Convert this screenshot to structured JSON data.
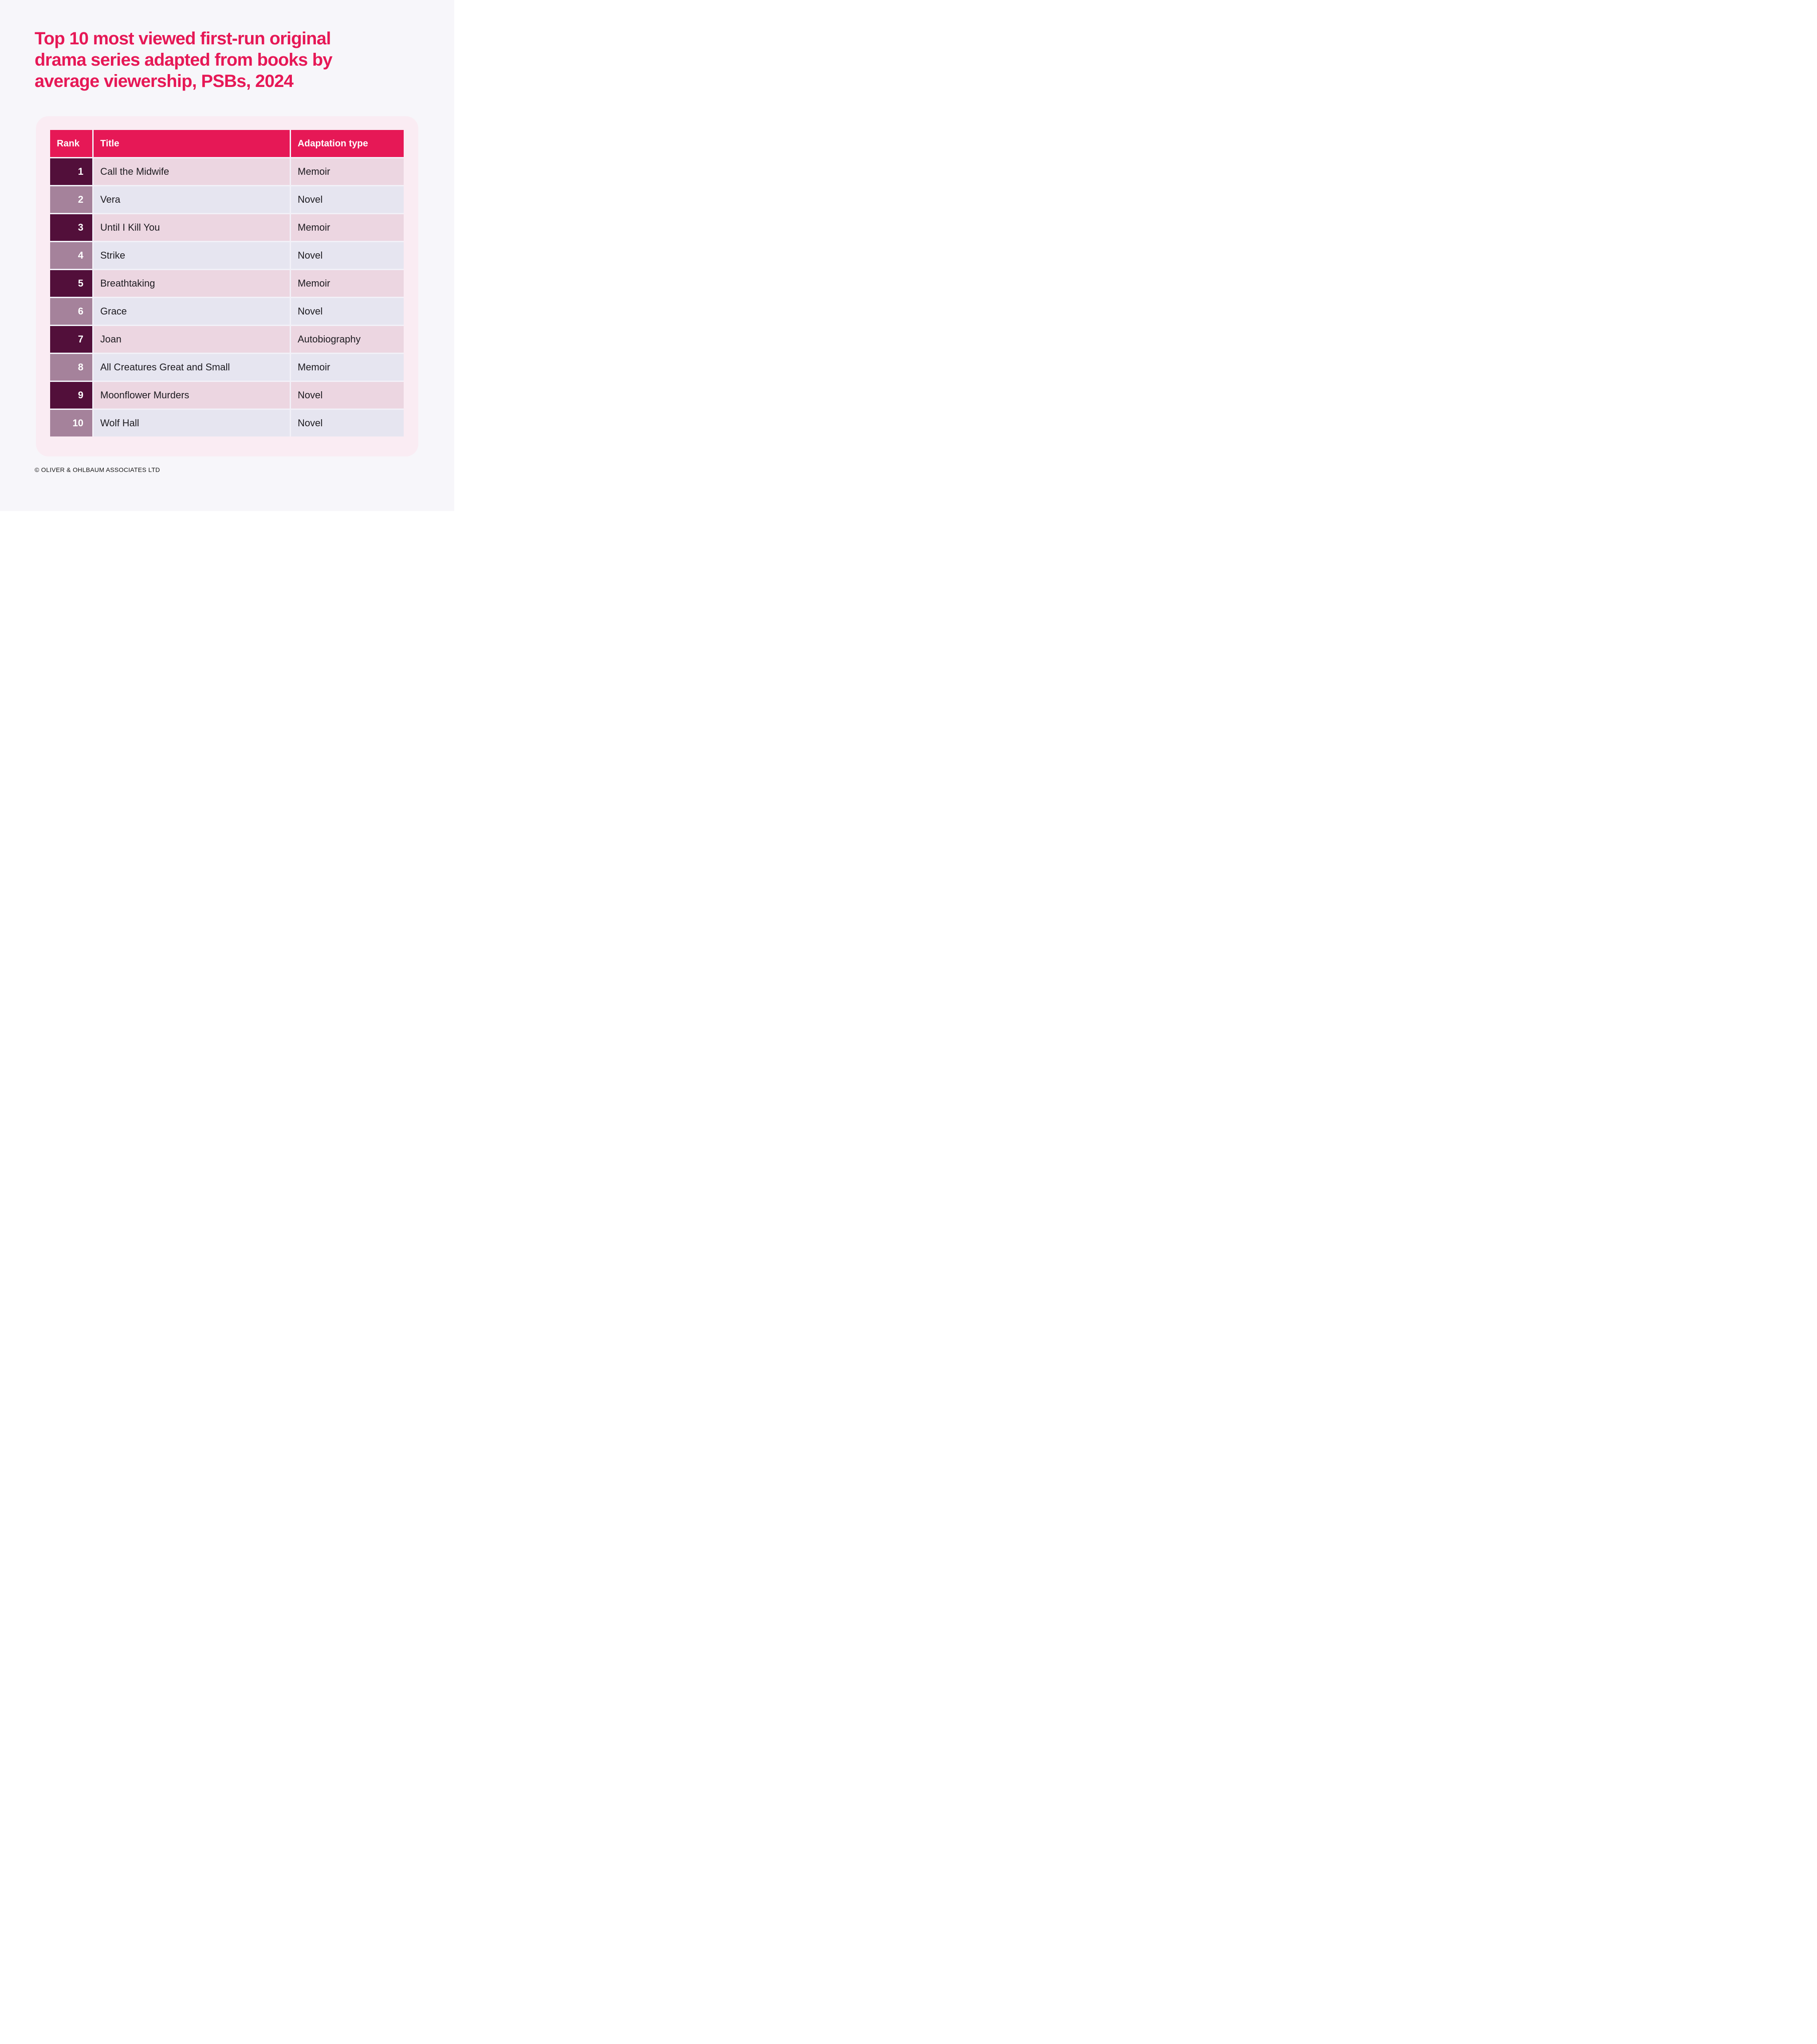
{
  "page": {
    "title": "Top 10 most viewed first-run original drama series adapted from books by average viewership, PSBs, 2024",
    "title_lines": [
      "Top 10 most viewed first-run original",
      "drama series adapted from books by",
      "average viewership, PSBs, 2024"
    ],
    "footer": "© OLIVER & OHLBAUM ASSOCIATES LTD"
  },
  "table": {
    "columns": [
      "Rank",
      "Title",
      "Adaptation type"
    ],
    "rows": [
      {
        "rank": "1",
        "title": "Call the Midwife",
        "type": "Memoir"
      },
      {
        "rank": "2",
        "title": "Vera",
        "type": "Novel"
      },
      {
        "rank": "3",
        "title": "Until I Kill You",
        "type": "Memoir"
      },
      {
        "rank": "4",
        "title": "Strike",
        "type": "Novel"
      },
      {
        "rank": "5",
        "title": "Breathtaking",
        "type": "Memoir"
      },
      {
        "rank": "6",
        "title": "Grace",
        "type": "Novel"
      },
      {
        "rank": "7",
        "title": "Joan",
        "type": "Autobiography"
      },
      {
        "rank": "8",
        "title": "All Creatures Great and Small",
        "type": "Memoir"
      },
      {
        "rank": "9",
        "title": "Moonflower Murders",
        "type": "Novel"
      },
      {
        "rank": "10",
        "title": "Wolf Hall",
        "type": "Novel"
      }
    ]
  },
  "chart_data": {
    "type": "table",
    "title": "Top 10 most viewed first-run original drama series adapted from books by average viewership, PSBs, 2024",
    "columns": [
      "Rank",
      "Title",
      "Adaptation type"
    ],
    "rows": [
      [
        1,
        "Call the Midwife",
        "Memoir"
      ],
      [
        2,
        "Vera",
        "Novel"
      ],
      [
        3,
        "Until I Kill You",
        "Memoir"
      ],
      [
        4,
        "Strike",
        "Novel"
      ],
      [
        5,
        "Breathtaking",
        "Memoir"
      ],
      [
        6,
        "Grace",
        "Novel"
      ],
      [
        7,
        "Joan",
        "Autobiography"
      ],
      [
        8,
        "All Creatures Great and Small",
        "Memoir"
      ],
      [
        9,
        "Moonflower Murders",
        "Novel"
      ],
      [
        10,
        "Wolf Hall",
        "Novel"
      ]
    ]
  },
  "colors": {
    "accent_pink": "#E61856",
    "dark_plum": "#520F3A",
    "mauve": "#A5829B",
    "row_pink": "#ECD6E1",
    "row_lavender": "#E6E5F0",
    "card_bg": "#FAECF3",
    "page_bg": "#F7F6FA",
    "gap": "#F2F1F8",
    "text_dark": "#1D1B20",
    "header_text": "#FFFFFF"
  }
}
